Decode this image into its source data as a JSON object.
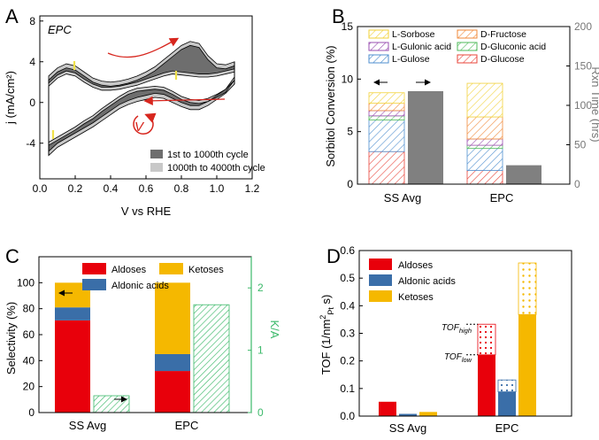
{
  "chart_data": [
    {
      "panel": "A",
      "type": "line",
      "title": "EPC",
      "xlabel": "V vs RHE",
      "ylabel": "j (mA/cm²)",
      "xlim": [
        0.0,
        1.2
      ],
      "ylim": [
        -7.5,
        8.5
      ],
      "xticks": [
        "0.0",
        "0.2",
        "0.4",
        "0.6",
        "0.8",
        "1.0",
        "1.2"
      ],
      "yticks": [
        "-4",
        "0",
        "4",
        "8"
      ],
      "legend": [
        "1st to 1000th cycle",
        "1000th to 4000th cycle"
      ],
      "arrow_label": "V",
      "anodic_upper": {
        "x": [
          0.05,
          0.1,
          0.15,
          0.2,
          0.25,
          0.3,
          0.35,
          0.4,
          0.45,
          0.5,
          0.55,
          0.6,
          0.65,
          0.7,
          0.75,
          0.8,
          0.85,
          0.9,
          0.95,
          1.0,
          1.05,
          1.1
        ],
        "y": [
          2.6,
          3.4,
          3.8,
          3.6,
          3.0,
          2.4,
          2.1,
          2.0,
          2.1,
          2.3,
          2.6,
          3.0,
          3.5,
          4.2,
          4.9,
          5.6,
          6.0,
          5.8,
          4.6,
          3.8,
          3.7,
          4.0
        ]
      },
      "anodic_lower": {
        "x": [
          0.05,
          0.1,
          0.15,
          0.2,
          0.25,
          0.3,
          0.35,
          0.4,
          0.45,
          0.5,
          0.55,
          0.6,
          0.65,
          0.7,
          0.75,
          0.8,
          0.85,
          0.9,
          0.95,
          1.0,
          1.05,
          1.1
        ],
        "y": [
          1.6,
          2.4,
          2.8,
          2.6,
          2.0,
          1.5,
          1.2,
          1.2,
          1.3,
          1.5,
          1.7,
          2.0,
          2.3,
          2.6,
          2.8,
          2.7,
          2.6,
          2.5,
          2.5,
          2.6,
          2.8,
          3.0
        ]
      },
      "cathodic_upper": {
        "x": [
          1.1,
          1.05,
          1.0,
          0.95,
          0.9,
          0.85,
          0.8,
          0.75,
          0.7,
          0.65,
          0.6,
          0.55,
          0.5,
          0.45,
          0.4,
          0.35,
          0.3,
          0.25,
          0.2,
          0.15,
          0.1,
          0.05
        ],
        "y": [
          2.5,
          1.3,
          0.8,
          0.4,
          0.2,
          0.3,
          0.6,
          1.1,
          1.5,
          1.6,
          1.5,
          1.4,
          1.1,
          0.6,
          0.0,
          -0.6,
          -1.3,
          -1.8,
          -2.4,
          -2.9,
          -3.4,
          -3.9
        ]
      },
      "cathodic_lower": {
        "x": [
          1.1,
          1.05,
          1.0,
          0.95,
          0.9,
          0.85,
          0.8,
          0.75,
          0.7,
          0.65,
          0.6,
          0.55,
          0.5,
          0.45,
          0.4,
          0.35,
          0.3,
          0.25,
          0.2,
          0.15,
          0.1,
          0.05
        ],
        "y": [
          1.8,
          0.9,
          0.3,
          -0.3,
          -0.7,
          -0.7,
          -0.4,
          0.0,
          0.4,
          0.5,
          0.3,
          0.1,
          -0.2,
          -0.6,
          -1.2,
          -1.8,
          -2.4,
          -2.9,
          -3.4,
          -3.9,
          -4.4,
          -5.2
        ]
      }
    },
    {
      "panel": "B",
      "type": "bar",
      "xlabel": "",
      "ylabel": "Sorbitol Conversion (%)",
      "ylabel_right": "Rxn Time (hrs)",
      "ylim": [
        0,
        15
      ],
      "ylim_right": [
        0,
        200
      ],
      "yticks": [
        "0",
        "5",
        "10",
        "15"
      ],
      "yticks_right": [
        "0",
        "50",
        "100",
        "150",
        "200"
      ],
      "categories": [
        "SS Avg",
        "EPC"
      ],
      "series": [
        {
          "name": "D-Glucose",
          "color": "#e8443a",
          "values": [
            3.1,
            1.3
          ]
        },
        {
          "name": "L-Gulose",
          "color": "#4f8fcf",
          "values": [
            3.0,
            2.1
          ]
        },
        {
          "name": "D-Gluconic acid",
          "color": "#4fba5a",
          "values": [
            0.4,
            0.3
          ]
        },
        {
          "name": "L-Gulonic acid",
          "color": "#9a4fb0",
          "values": [
            0.5,
            0.6
          ]
        },
        {
          "name": "D-Fructose",
          "color": "#f08a3a",
          "values": [
            0.7,
            2.1
          ]
        },
        {
          "name": "L-Sorbose",
          "color": "#f2d23a",
          "values": [
            1.0,
            3.2
          ]
        }
      ],
      "rxn_time": {
        "name": "Rxn Time",
        "color": "#808080",
        "values": [
          118,
          24
        ]
      }
    },
    {
      "panel": "C",
      "type": "bar",
      "xlabel": "",
      "ylabel": "Selectivity (%)",
      "ylabel_right": "K/A",
      "ylim": [
        0,
        120
      ],
      "ylim_right": [
        0,
        2.5
      ],
      "yticks": [
        "0",
        "20",
        "40",
        "60",
        "80",
        "100"
      ],
      "yticks_right": [
        "0",
        "1",
        "2"
      ],
      "categories": [
        "SS Avg",
        "EPC"
      ],
      "series": [
        {
          "name": "Aldoses",
          "color": "#e8000b",
          "values": [
            71,
            32
          ]
        },
        {
          "name": "Aldonic acids",
          "color": "#3a6ea8",
          "values": [
            10,
            13
          ]
        },
        {
          "name": "Ketoses",
          "color": "#f5b800",
          "values": [
            19,
            55
          ]
        }
      ],
      "ka": {
        "name": "K/A",
        "color": "#3cb96a",
        "values": [
          0.27,
          1.73
        ]
      }
    },
    {
      "panel": "D",
      "type": "bar",
      "xlabel": "",
      "ylabel": "TOF (1/nm² Pt s)",
      "ylim": [
        0,
        0.6
      ],
      "yticks": [
        "0.0",
        "0.1",
        "0.2",
        "0.3",
        "0.4",
        "0.5",
        "0.6"
      ],
      "categories": [
        "SS Avg",
        "EPC"
      ],
      "series": [
        {
          "name": "Aldoses",
          "color": "#e8000b",
          "low": [
            0.052,
            0.222
          ],
          "high": [
            0.052,
            0.333
          ]
        },
        {
          "name": "Aldonic acids",
          "color": "#3a6ea8",
          "low": [
            0.008,
            0.088
          ],
          "high": [
            0.008,
            0.131
          ]
        },
        {
          "name": "Ketoses",
          "color": "#f5b800",
          "low": [
            0.015,
            0.368
          ],
          "high": [
            0.015,
            0.555
          ]
        }
      ],
      "annotations": [
        "TOF",
        "high",
        "TOF",
        "low"
      ]
    }
  ],
  "labels": {
    "A": "A",
    "B": "B",
    "C": "C",
    "D": "D",
    "a_title": "EPC",
    "a_xlabel": "V vs RHE",
    "a_ylabel": "j (mA/cm²)",
    "a_leg1": "1st to 1000th cycle",
    "a_leg2": "1000th to 4000th cycle",
    "a_V": "V",
    "b_ylabel": "Sorbitol Conversion (%)",
    "b_ylabel_r": "Rxn Time (hrs)",
    "b_leg": [
      "L-Sorbose",
      "D-Fructose",
      "L-Gulonic acid",
      "D-Gluconic acid",
      "L-Gulose",
      "D-Glucose"
    ],
    "cat_ss": "SS Avg",
    "cat_epc": "EPC",
    "c_ylabel": "Selectivity (%)",
    "c_ylabel_r": "K/A",
    "c_leg": [
      "Aldoses",
      "Ketoses",
      "Aldonic acids"
    ],
    "d_ylabel": "TOF (1/nm",
    "d_ylabel_sub": "Pt",
    "d_ylabel_end": " s)",
    "d_ylabel_sup": "2",
    "d_leg": [
      "Aldoses",
      "Aldonic acids",
      "Ketoses"
    ],
    "tof": "TOF",
    "tof_high": "high",
    "tof_low": "low"
  },
  "colors": {
    "dark_band": "#6e6e6e",
    "light_band": "#c8c8c8",
    "arrow": "#d7261e",
    "marker": "#f0e24a",
    "green": "#3cb96a",
    "gray_bar": "#808080"
  }
}
